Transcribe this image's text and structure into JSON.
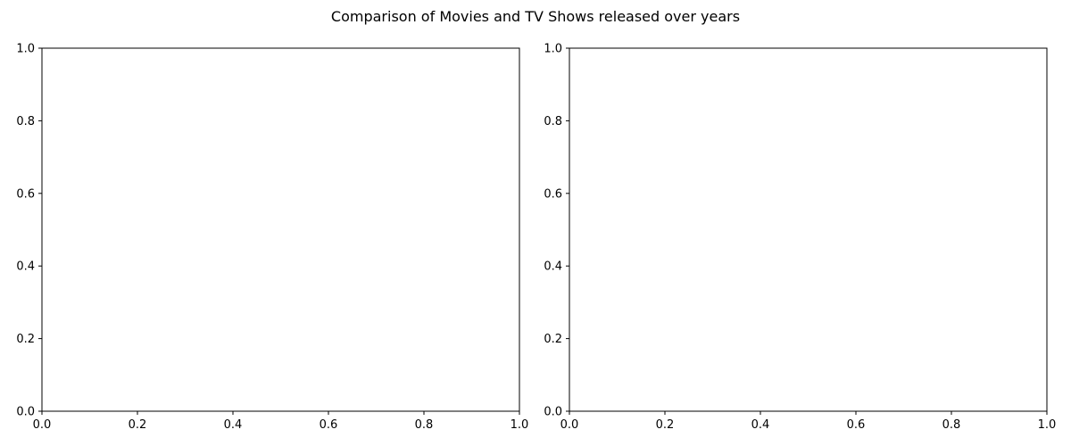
{
  "figure": {
    "suptitle": "Comparison of Movies and TV Shows released over years"
  },
  "chart_data": [
    {
      "type": "line",
      "title": "",
      "xlabel": "",
      "ylabel": "",
      "xlim": [
        0,
        1
      ],
      "ylim": [
        0,
        1
      ],
      "xticks": [
        "0.0",
        "0.2",
        "0.4",
        "0.6",
        "0.8",
        "1.0"
      ],
      "yticks": [
        "0.0",
        "0.2",
        "0.4",
        "0.6",
        "0.8",
        "1.0"
      ],
      "series": [],
      "grid": false,
      "legend": "none"
    },
    {
      "type": "line",
      "title": "",
      "xlabel": "",
      "ylabel": "",
      "xlim": [
        0,
        1
      ],
      "ylim": [
        0,
        1
      ],
      "xticks": [
        "0.0",
        "0.2",
        "0.4",
        "0.6",
        "0.8",
        "1.0"
      ],
      "yticks": [
        "0.0",
        "0.2",
        "0.4",
        "0.6",
        "0.8",
        "1.0"
      ],
      "series": [],
      "grid": false,
      "legend": "none"
    }
  ]
}
